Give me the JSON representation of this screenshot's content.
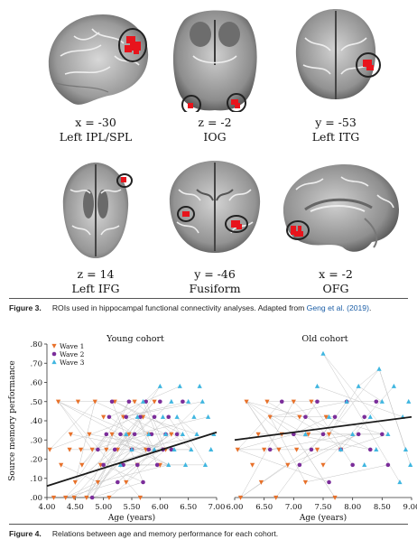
{
  "figure3": {
    "panels": [
      {
        "coord": "x = -30",
        "name": "Left IPL/SPL",
        "view": "sagittal-lateral"
      },
      {
        "coord": "z = -2",
        "name": "IOG",
        "view": "axial-inferior"
      },
      {
        "coord": "y = -53",
        "name": "Left ITG",
        "view": "coronal"
      },
      {
        "coord": "z = 14",
        "name": "Left IFG",
        "view": "axial"
      },
      {
        "coord": "y = -46",
        "name": "Fusiform",
        "view": "coronal"
      },
      {
        "coord": "x = -2",
        "name": "OFG",
        "view": "sagittal-medial"
      }
    ],
    "caption_label": "Figure 3.",
    "caption_text": "ROIs used in hippocampal functional connectivity analyses. Adapted from ",
    "caption_cite": "Geng et al. (2019)",
    "caption_end": ".",
    "roi_color": "#e8141c"
  },
  "figure4": {
    "caption_label": "Figure 4.",
    "caption_text": "Relations between age and memory performance for each cohort."
  },
  "chart_data": [
    {
      "type": "scatter",
      "title": "Young cohort",
      "xlabel": "Age (years)",
      "ylabel": "Source memory performance",
      "xlim": [
        4.0,
        7.0
      ],
      "ylim": [
        0.0,
        0.8
      ],
      "xticks": [
        "4.00",
        "4.50",
        "5.00",
        "5.50",
        "6.00",
        "6.50",
        "7.00"
      ],
      "yticks": [
        ".00",
        ".10",
        ".20",
        ".30",
        ".40",
        ".50",
        ".60",
        ".70",
        ".80"
      ],
      "legend": [
        "Wave 1",
        "Wave 2",
        "Wave 3"
      ],
      "legend_position": "top-left",
      "series": [
        {
          "name": "Wave 1",
          "color": "#e8712a",
          "marker": "triangle-down",
          "points": [
            [
              4.05,
              0.25
            ],
            [
              4.12,
              0.0
            ],
            [
              4.2,
              0.5
            ],
            [
              4.25,
              0.17
            ],
            [
              4.33,
              0.0
            ],
            [
              4.4,
              0.25
            ],
            [
              4.42,
              0.33
            ],
            [
              4.48,
              0.0
            ],
            [
              4.5,
              0.08
            ],
            [
              4.55,
              0.5
            ],
            [
              4.6,
              0.25
            ],
            [
              4.62,
              0.17
            ],
            [
              4.7,
              0.0
            ],
            [
              4.75,
              0.33
            ],
            [
              4.8,
              0.25
            ],
            [
              4.85,
              0.5
            ],
            [
              4.9,
              0.08
            ],
            [
              4.95,
              0.17
            ],
            [
              5.0,
              0.42
            ],
            [
              5.05,
              0.25
            ],
            [
              5.1,
              0.0
            ],
            [
              5.15,
              0.33
            ],
            [
              5.2,
              0.5
            ],
            [
              5.25,
              0.25
            ],
            [
              5.3,
              0.17
            ],
            [
              5.35,
              0.42
            ],
            [
              5.4,
              0.08
            ],
            [
              5.45,
              0.33
            ],
            [
              5.5,
              0.25
            ],
            [
              5.55,
              0.5
            ],
            [
              5.6,
              0.17
            ],
            [
              5.65,
              0.0
            ],
            [
              5.7,
              0.42
            ],
            [
              5.75,
              0.25
            ],
            [
              5.8,
              0.33
            ],
            [
              5.9,
              0.5
            ],
            [
              6.0,
              0.17
            ],
            [
              6.1,
              0.25
            ],
            [
              6.2,
              0.33
            ]
          ]
        },
        {
          "name": "Wave 2",
          "color": "#7b2d9a",
          "marker": "circle",
          "points": [
            [
              4.8,
              0.0
            ],
            [
              4.9,
              0.25
            ],
            [
              5.0,
              0.17
            ],
            [
              5.05,
              0.33
            ],
            [
              5.1,
              0.42
            ],
            [
              5.15,
              0.5
            ],
            [
              5.2,
              0.25
            ],
            [
              5.25,
              0.08
            ],
            [
              5.3,
              0.33
            ],
            [
              5.35,
              0.17
            ],
            [
              5.4,
              0.42
            ],
            [
              5.45,
              0.5
            ],
            [
              5.5,
              0.25
            ],
            [
              5.55,
              0.33
            ],
            [
              5.6,
              0.17
            ],
            [
              5.65,
              0.42
            ],
            [
              5.7,
              0.08
            ],
            [
              5.75,
              0.5
            ],
            [
              5.8,
              0.25
            ],
            [
              5.85,
              0.33
            ],
            [
              5.9,
              0.42
            ],
            [
              5.95,
              0.17
            ],
            [
              6.0,
              0.5
            ],
            [
              6.05,
              0.25
            ],
            [
              6.1,
              0.33
            ],
            [
              6.15,
              0.42
            ],
            [
              6.2,
              0.25
            ],
            [
              6.3,
              0.33
            ],
            [
              6.4,
              0.5
            ]
          ]
        },
        {
          "name": "Wave 3",
          "color": "#3fb6e0",
          "marker": "triangle-up",
          "points": [
            [
              5.3,
              0.17
            ],
            [
              5.4,
              0.33
            ],
            [
              5.5,
              0.25
            ],
            [
              5.6,
              0.42
            ],
            [
              5.7,
              0.5
            ],
            [
              5.8,
              0.33
            ],
            [
              5.9,
              0.25
            ],
            [
              6.0,
              0.58
            ],
            [
              6.05,
              0.42
            ],
            [
              6.1,
              0.33
            ],
            [
              6.15,
              0.17
            ],
            [
              6.2,
              0.5
            ],
            [
              6.25,
              0.25
            ],
            [
              6.3,
              0.42
            ],
            [
              6.35,
              0.58
            ],
            [
              6.4,
              0.33
            ],
            [
              6.45,
              0.17
            ],
            [
              6.5,
              0.5
            ],
            [
              6.55,
              0.25
            ],
            [
              6.6,
              0.42
            ],
            [
              6.65,
              0.33
            ],
            [
              6.7,
              0.58
            ],
            [
              6.75,
              0.5
            ],
            [
              6.8,
              0.17
            ],
            [
              6.85,
              0.42
            ],
            [
              6.9,
              0.25
            ],
            [
              6.95,
              0.33
            ]
          ]
        }
      ],
      "trend": {
        "x": [
          4.0,
          7.0
        ],
        "y": [
          0.06,
          0.34
        ]
      }
    },
    {
      "type": "scatter",
      "title": "Old cohort",
      "xlabel": "Age (years)",
      "xlim": [
        6.0,
        9.0
      ],
      "ylim": [
        0.0,
        0.8
      ],
      "xticks": [
        "6.00",
        "6.50",
        "7.00",
        "7.50",
        "8.00",
        "8.50",
        "9.00"
      ],
      "series": [
        {
          "name": "Wave 1",
          "color": "#e8712a",
          "marker": "triangle-down",
          "points": [
            [
              6.05,
              0.25
            ],
            [
              6.1,
              0.0
            ],
            [
              6.2,
              0.5
            ],
            [
              6.3,
              0.17
            ],
            [
              6.4,
              0.33
            ],
            [
              6.45,
              0.08
            ],
            [
              6.5,
              0.25
            ],
            [
              6.55,
              0.5
            ],
            [
              6.6,
              0.42
            ],
            [
              6.7,
              0.0
            ],
            [
              6.75,
              0.25
            ],
            [
              6.8,
              0.33
            ],
            [
              6.9,
              0.17
            ],
            [
              7.0,
              0.5
            ],
            [
              7.05,
              0.25
            ],
            [
              7.1,
              0.42
            ],
            [
              7.2,
              0.08
            ],
            [
              7.25,
              0.33
            ],
            [
              7.3,
              0.5
            ],
            [
              7.4,
              0.25
            ],
            [
              7.5,
              0.17
            ],
            [
              7.55,
              0.42
            ],
            [
              7.6,
              0.33
            ],
            [
              7.7,
              0.0
            ],
            [
              7.8,
              0.25
            ]
          ]
        },
        {
          "name": "Wave 2",
          "color": "#7b2d9a",
          "marker": "circle",
          "points": [
            [
              6.6,
              0.25
            ],
            [
              6.8,
              0.5
            ],
            [
              7.0,
              0.33
            ],
            [
              7.1,
              0.17
            ],
            [
              7.2,
              0.42
            ],
            [
              7.3,
              0.25
            ],
            [
              7.4,
              0.5
            ],
            [
              7.5,
              0.33
            ],
            [
              7.6,
              0.08
            ],
            [
              7.7,
              0.42
            ],
            [
              7.8,
              0.25
            ],
            [
              7.9,
              0.5
            ],
            [
              8.0,
              0.17
            ],
            [
              8.1,
              0.33
            ],
            [
              8.2,
              0.42
            ],
            [
              8.3,
              0.25
            ],
            [
              8.4,
              0.5
            ],
            [
              8.5,
              0.33
            ],
            [
              8.6,
              0.17
            ]
          ]
        },
        {
          "name": "Wave 3",
          "color": "#3fb6e0",
          "marker": "triangle-up",
          "points": [
            [
              7.2,
              0.33
            ],
            [
              7.4,
              0.58
            ],
            [
              7.6,
              0.42
            ],
            [
              7.8,
              0.25
            ],
            [
              7.9,
              0.5
            ],
            [
              8.0,
              0.33
            ],
            [
              8.1,
              0.58
            ],
            [
              8.2,
              0.17
            ],
            [
              8.3,
              0.42
            ],
            [
              8.4,
              0.25
            ],
            [
              8.5,
              0.5
            ],
            [
              8.6,
              0.33
            ],
            [
              8.7,
              0.58
            ],
            [
              8.8,
              0.08
            ],
            [
              8.85,
              0.42
            ],
            [
              8.9,
              0.25
            ],
            [
              8.95,
              0.5
            ],
            [
              8.98,
              0.17
            ],
            [
              7.5,
              0.75
            ],
            [
              8.45,
              0.67
            ]
          ]
        }
      ],
      "trend": {
        "x": [
          6.0,
          9.0
        ],
        "y": [
          0.3,
          0.42
        ]
      }
    }
  ]
}
